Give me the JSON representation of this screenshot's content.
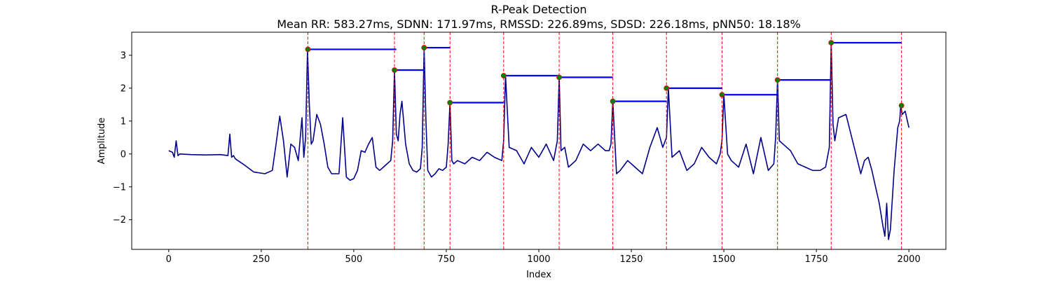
{
  "chart_data": {
    "type": "line",
    "title": "R-Peak Detection",
    "subtitle": "Mean RR: 583.27ms, SDNN: 171.97ms, RMSSD: 226.89ms, SDSD: 226.18ms, pNN50: 18.18%",
    "xlabel": "Index",
    "ylabel": "Amplitude",
    "xlim": [
      -100,
      2100
    ],
    "ylim": [
      -2.9,
      3.7
    ],
    "xticks": [
      0,
      250,
      500,
      750,
      1000,
      1250,
      1500,
      1750,
      2000
    ],
    "yticks": [
      -2,
      -1,
      0,
      1,
      2,
      3
    ],
    "grid": false,
    "colors": {
      "signal": "#00008b",
      "peak_marker": "#008000",
      "peak_line": "#ff0000",
      "rr_interval": "#0000ff"
    },
    "signal": {
      "x": [
        0,
        10,
        15,
        20,
        25,
        30,
        60,
        100,
        140,
        160,
        165,
        170,
        175,
        180,
        200,
        230,
        260,
        280,
        290,
        300,
        310,
        320,
        330,
        340,
        350,
        360,
        365,
        370,
        375,
        380,
        385,
        390,
        400,
        410,
        420,
        430,
        440,
        460,
        470,
        480,
        490,
        500,
        510,
        520,
        530,
        540,
        550,
        560,
        570,
        580,
        590,
        600,
        605,
        610,
        615,
        620,
        625,
        630,
        640,
        650,
        660,
        670,
        680,
        685,
        690,
        695,
        700,
        710,
        720,
        730,
        740,
        750,
        755,
        760,
        765,
        770,
        780,
        800,
        820,
        840,
        860,
        880,
        900,
        905,
        910,
        920,
        940,
        960,
        980,
        1000,
        1020,
        1040,
        1050,
        1055,
        1060,
        1070,
        1080,
        1100,
        1120,
        1140,
        1160,
        1180,
        1190,
        1195,
        1200,
        1210,
        1220,
        1240,
        1260,
        1280,
        1300,
        1320,
        1335,
        1345,
        1350,
        1360,
        1380,
        1400,
        1420,
        1440,
        1460,
        1480,
        1490,
        1495,
        1500,
        1510,
        1520,
        1540,
        1560,
        1580,
        1600,
        1620,
        1635,
        1640,
        1645,
        1650,
        1660,
        1680,
        1700,
        1720,
        1740,
        1760,
        1775,
        1785,
        1790,
        1795,
        1800,
        1810,
        1830,
        1850,
        1870,
        1880,
        1890,
        1900,
        1910,
        1920,
        1930,
        1935,
        1940,
        1945,
        1950,
        1960,
        1970,
        1975,
        1978,
        1982,
        1990,
        2000
      ],
      "y": [
        0.1,
        0.05,
        -0.1,
        0.4,
        -0.05,
        0.0,
        -0.02,
        -0.03,
        -0.02,
        -0.05,
        0.6,
        -0.1,
        -0.05,
        -0.15,
        -0.3,
        -0.55,
        -0.6,
        -0.5,
        0.3,
        1.15,
        0.4,
        -0.7,
        0.3,
        0.2,
        -0.2,
        1.1,
        -0.1,
        0.5,
        3.18,
        1.5,
        0.3,
        0.4,
        1.2,
        0.9,
        0.3,
        -0.4,
        -0.6,
        -0.6,
        1.1,
        -0.7,
        -0.8,
        -0.75,
        -0.5,
        0.1,
        0.05,
        0.3,
        0.5,
        -0.4,
        -0.5,
        -0.4,
        -0.3,
        -0.2,
        0.4,
        2.55,
        0.6,
        0.4,
        1.2,
        1.6,
        0.3,
        -0.3,
        -0.5,
        -0.55,
        -0.45,
        0.2,
        3.23,
        1.0,
        -0.5,
        -0.7,
        -0.6,
        -0.45,
        -0.5,
        -0.4,
        0.3,
        1.56,
        -0.2,
        -0.3,
        -0.2,
        -0.3,
        -0.1,
        -0.2,
        0.05,
        -0.1,
        -0.2,
        0.4,
        2.38,
        0.2,
        0.1,
        -0.3,
        0.2,
        -0.1,
        0.3,
        -0.2,
        0.4,
        2.33,
        0.1,
        0.2,
        -0.4,
        -0.2,
        0.3,
        0.1,
        0.3,
        0.1,
        0.1,
        0.3,
        1.6,
        -0.6,
        -0.5,
        -0.2,
        -0.4,
        -0.6,
        0.2,
        0.8,
        0.2,
        0.5,
        2.0,
        -0.1,
        0.1,
        -0.5,
        -0.3,
        0.2,
        -0.1,
        -0.3,
        0.0,
        0.4,
        1.8,
        0.0,
        -0.2,
        -0.4,
        0.3,
        -0.6,
        0.5,
        -0.5,
        -0.3,
        0.5,
        2.25,
        0.4,
        0.3,
        0.1,
        -0.3,
        -0.4,
        -0.5,
        -0.5,
        -0.4,
        0.2,
        3.38,
        0.9,
        0.4,
        1.1,
        1.2,
        0.3,
        -0.6,
        -0.2,
        -0.1,
        -0.5,
        -1.0,
        -1.5,
        -2.2,
        -2.5,
        -1.5,
        -2.6,
        -2.3,
        -0.5,
        0.8,
        1.0,
        1.47,
        1.2,
        1.3,
        0.8
      ]
    },
    "r_peaks": {
      "x": [
        376,
        610,
        690,
        760,
        905,
        1055,
        1200,
        1345,
        1495,
        1645,
        1790,
        1980
      ],
      "y": [
        3.18,
        2.55,
        3.23,
        1.56,
        2.38,
        2.33,
        1.6,
        2.0,
        1.8,
        2.25,
        3.38,
        1.47
      ]
    },
    "rr_segments": [
      {
        "x_start": 376,
        "x_end": 615,
        "y": 3.18
      },
      {
        "x_start": 610,
        "x_end": 690,
        "y": 2.55
      },
      {
        "x_start": 690,
        "x_end": 760,
        "y": 3.23
      },
      {
        "x_start": 760,
        "x_end": 905,
        "y": 1.56
      },
      {
        "x_start": 905,
        "x_end": 1055,
        "y": 2.38
      },
      {
        "x_start": 1055,
        "x_end": 1200,
        "y": 2.33
      },
      {
        "x_start": 1200,
        "x_end": 1345,
        "y": 1.6
      },
      {
        "x_start": 1345,
        "x_end": 1495,
        "y": 2.0
      },
      {
        "x_start": 1495,
        "x_end": 1645,
        "y": 1.8
      },
      {
        "x_start": 1645,
        "x_end": 1790,
        "y": 2.25
      },
      {
        "x_start": 1790,
        "x_end": 1980,
        "y": 3.38
      }
    ]
  }
}
